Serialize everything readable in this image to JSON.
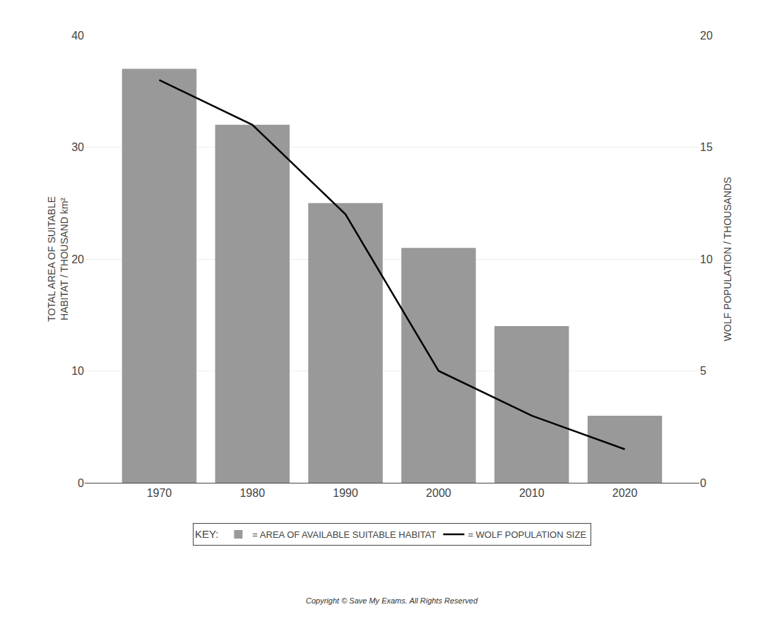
{
  "chart_data": {
    "type": "bar",
    "x": [
      1970,
      1980,
      1990,
      2000,
      2010,
      2020
    ],
    "xlim": [
      1962,
      2028
    ],
    "xticks": [
      1970,
      1980,
      1990,
      2000,
      2010,
      2020
    ],
    "ylabel": [
      "TOTAL AREA OF SUITABLE",
      "HABITAT / THOUSAND km²"
    ],
    "y2label": "WOLF POPULATION / THOUSANDS",
    "ylim": [
      0,
      40
    ],
    "yticks": [
      0,
      10,
      20,
      30,
      40
    ],
    "y2lim": [
      0,
      20
    ],
    "y2ticks": [
      0,
      5,
      10,
      15,
      20
    ],
    "grid": true,
    "legend": "bottom",
    "legend_title": "KEY:",
    "annotations": [
      "Copyright © Save My Exams. All Rights Reserved"
    ],
    "series": [
      {
        "name": "= AREA OF AVAILABLE SUITABLE HABITAT",
        "type": "bar",
        "color": "#999999",
        "values": [
          37,
          32,
          25,
          21,
          14,
          6
        ]
      },
      {
        "name": "= WOLF POPULATION SIZE",
        "type": "line",
        "color": "#000000",
        "axis": "y2",
        "values": [
          18,
          16,
          12,
          5,
          3,
          1.5
        ]
      }
    ]
  }
}
